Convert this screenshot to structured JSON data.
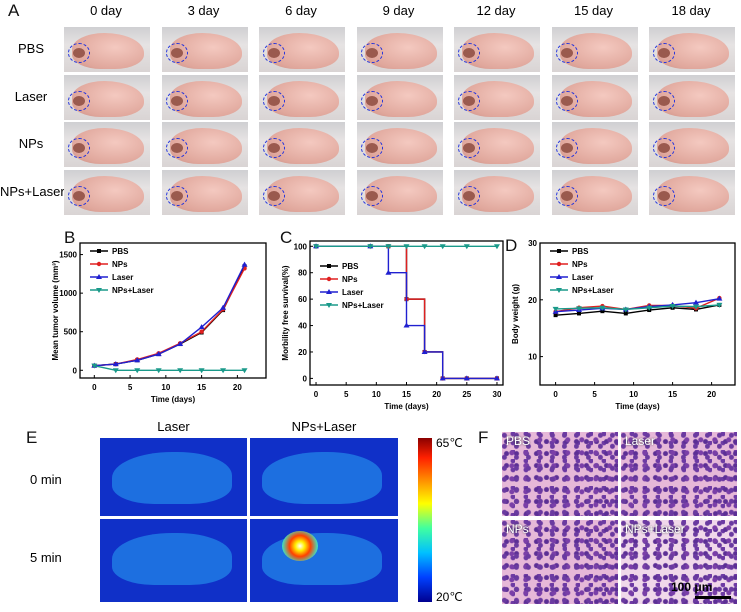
{
  "panels": {
    "a": "A",
    "b": "B",
    "c": "C",
    "d": "D",
    "e": "E",
    "f": "F"
  },
  "panel_a": {
    "columns": [
      "0 day",
      "3 day",
      "6  day",
      "9  day",
      "12  day",
      "15  day",
      "18  day"
    ],
    "rows": [
      "PBS",
      "Laser",
      "NPs",
      "NPs+Laser"
    ]
  },
  "panel_e": {
    "columns": [
      "Laser",
      "NPs+Laser"
    ],
    "rows": [
      "0 min",
      "5 min"
    ],
    "colorbar_max": "65℃",
    "colorbar_min": "20℃"
  },
  "panel_f": {
    "labels": [
      "PBS",
      "Laser",
      "NPs",
      "NPs+Laser"
    ],
    "scale_bar": "100 μm"
  },
  "colors": {
    "PBS": "#000000",
    "NPs": "#e02020",
    "Laser": "#2020d0",
    "NPs+Laser": "#1a9a8a"
  },
  "chart_data": [
    {
      "type": "line",
      "panel": "B",
      "xlabel": "Time (days)",
      "ylabel": "Mean tumor volume (mm³)",
      "xlim": [
        -2,
        24
      ],
      "ylim": [
        -100,
        1650
      ],
      "xticks": [
        0,
        5,
        10,
        15,
        20
      ],
      "yticks": [
        0,
        500,
        1000,
        1500
      ],
      "legend": "top-left",
      "x": [
        0,
        3,
        6,
        9,
        12,
        15,
        18,
        21
      ],
      "series": [
        {
          "name": "PBS",
          "values": [
            60,
            80,
            130,
            210,
            340,
            490,
            780,
            1350
          ],
          "marker": "square"
        },
        {
          "name": "NPs",
          "values": [
            60,
            80,
            140,
            220,
            350,
            500,
            790,
            1320
          ],
          "marker": "circle"
        },
        {
          "name": "Laser",
          "values": [
            60,
            80,
            130,
            210,
            340,
            560,
            810,
            1370
          ],
          "marker": "triangle-up"
        },
        {
          "name": "NPs+Laser",
          "values": [
            60,
            0,
            0,
            0,
            0,
            0,
            0,
            0
          ],
          "marker": "triangle-down"
        }
      ]
    },
    {
      "type": "line",
      "panel": "C",
      "step": true,
      "xlabel": "Time (days)",
      "ylabel": "Morbility free survival(%)",
      "xlim": [
        -1,
        31
      ],
      "ylim": [
        -5,
        104
      ],
      "xticks": [
        0,
        5,
        10,
        15,
        20,
        25,
        30
      ],
      "yticks": [
        0,
        20,
        40,
        60,
        80,
        100
      ],
      "legend": "center-left",
      "x": [
        0,
        9,
        12,
        15,
        18,
        21,
        25,
        30
      ],
      "series": [
        {
          "name": "PBS",
          "values": [
            100,
            100,
            100,
            60,
            20,
            0,
            0,
            0
          ],
          "marker": "square"
        },
        {
          "name": "NPs",
          "values": [
            100,
            100,
            100,
            60,
            20,
            0,
            0,
            0
          ],
          "marker": "circle"
        },
        {
          "name": "Laser",
          "values": [
            100,
            100,
            80,
            40,
            20,
            0,
            0,
            0
          ],
          "marker": "triangle-up"
        },
        {
          "name": "NPs+Laser",
          "values": [
            100,
            100,
            100,
            100,
            100,
            100,
            100,
            100
          ],
          "marker": "triangle-down"
        }
      ]
    },
    {
      "type": "line",
      "panel": "D",
      "xlabel": "Time (days)",
      "ylabel": "Body weight (g)",
      "xlim": [
        -2,
        23
      ],
      "ylim": [
        5,
        30
      ],
      "xticks": [
        0,
        5,
        10,
        15,
        20
      ],
      "yticks": [
        10,
        20,
        30
      ],
      "legend": "top-left",
      "x": [
        0,
        3,
        6,
        9,
        12,
        15,
        18,
        21
      ],
      "series": [
        {
          "name": "PBS",
          "values": [
            17.3,
            17.6,
            18.0,
            17.6,
            18.2,
            18.6,
            18.3,
            19.1
          ],
          "marker": "square"
        },
        {
          "name": "NPs",
          "values": [
            17.9,
            18.6,
            18.9,
            18.3,
            19.0,
            19.0,
            18.5,
            20.3
          ],
          "marker": "circle"
        },
        {
          "name": "Laser",
          "values": [
            17.9,
            18.2,
            18.5,
            18.3,
            18.8,
            19.1,
            19.5,
            20.2
          ],
          "marker": "triangle-up"
        },
        {
          "name": "NPs+Laser",
          "values": [
            18.4,
            18.5,
            18.6,
            18.3,
            18.6,
            18.9,
            18.8,
            19.1
          ],
          "marker": "triangle-down"
        }
      ]
    }
  ]
}
